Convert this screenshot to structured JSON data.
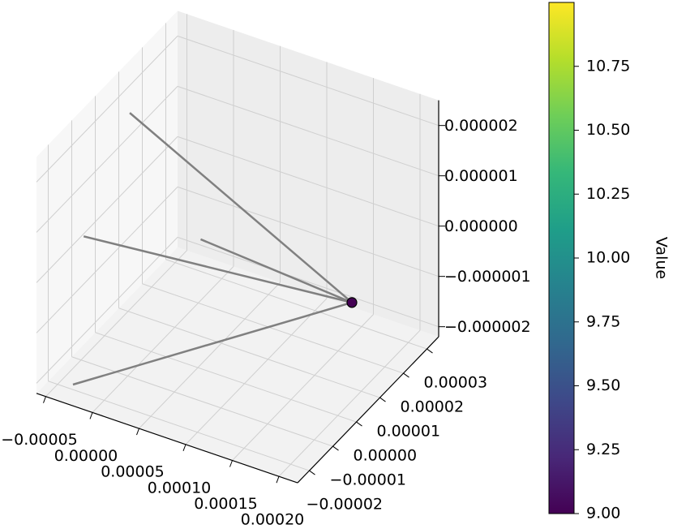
{
  "chart_data": {
    "type": "scatter3d",
    "x": [
      0.00019
    ],
    "y": [
      1e-05
    ],
    "z": [
      -5e-07
    ],
    "values": [
      9.0
    ],
    "lines": [
      {
        "x": [
          0.00019,
          -2.3e-05
        ],
        "y": [
          1e-05,
          0
        ],
        "z": [
          -5e-07,
          2.4e-06
        ]
      },
      {
        "x": [
          0.00019,
          -2.2e-05
        ],
        "y": [
          1e-05,
          -2e-05
        ],
        "z": [
          -5e-07,
          9.2e-07
        ]
      },
      {
        "x": [
          0.00019,
          5.3e-05
        ],
        "y": [
          1e-05,
          0
        ],
        "z": [
          -5e-07,
          3.7e-07
        ]
      },
      {
        "x": [
          0.00019,
          -3.35e-05
        ],
        "y": [
          1e-05,
          -2e-05
        ],
        "z": [
          -5e-07,
          -2.1e-06
        ]
      }
    ],
    "line_color": "#808080",
    "xlim": [
      -6e-05,
      0.00022
    ],
    "ylim": [
      -2.5e-05,
      3.5e-05
    ],
    "zlim": [
      -2.2e-06,
      2.5e-06
    ],
    "xticks": [
      {
        "value": -5e-05,
        "label": "−0.00005"
      },
      {
        "value": 0,
        "label": "0.00000"
      },
      {
        "value": 5e-05,
        "label": "0.00005"
      },
      {
        "value": 0.0001,
        "label": "0.00010"
      },
      {
        "value": 0.00015,
        "label": "0.00015"
      },
      {
        "value": 0.0002,
        "label": "0.00020"
      }
    ],
    "yticks": [
      {
        "value": -2e-05,
        "label": "−0.00002"
      },
      {
        "value": -1e-05,
        "label": "−0.00001"
      },
      {
        "value": 0,
        "label": "0.00000"
      },
      {
        "value": 1e-05,
        "label": "0.00001"
      },
      {
        "value": 2e-05,
        "label": "0.00002"
      },
      {
        "value": 3e-05,
        "label": "0.00003"
      }
    ],
    "zticks": [
      {
        "value": -2e-06,
        "label": "−0.000002"
      },
      {
        "value": -1e-06,
        "label": "−0.000001"
      },
      {
        "value": 0,
        "label": "0.000000"
      },
      {
        "value": 1e-06,
        "label": "0.000001"
      },
      {
        "value": 2e-06,
        "label": "0.000002"
      }
    ],
    "grid": true,
    "colormap": "viridis",
    "colorbar": {
      "label": "Value",
      "lim": [
        9.0,
        11.0
      ],
      "ticks": [
        {
          "value": 9.0,
          "label": "9.00"
        },
        {
          "value": 9.25,
          "label": "9.25"
        },
        {
          "value": 9.5,
          "label": "9.50"
        },
        {
          "value": 9.75,
          "label": "9.75"
        },
        {
          "value": 10.0,
          "label": "10.00"
        },
        {
          "value": 10.25,
          "label": "10.25"
        },
        {
          "value": 10.5,
          "label": "10.50"
        },
        {
          "value": 10.75,
          "label": "10.75"
        }
      ]
    }
  }
}
